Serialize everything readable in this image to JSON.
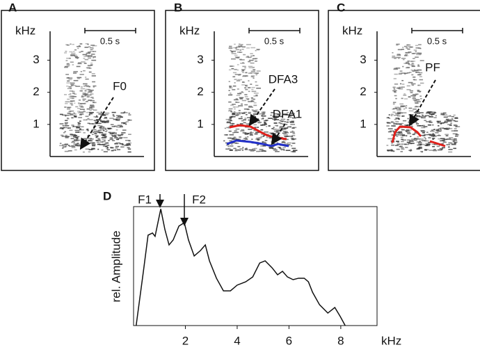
{
  "chart_data": [
    {
      "type": "spectrogram",
      "panel": "A",
      "ylabel": "kHz",
      "ylim": [
        0,
        3.9
      ],
      "yticks": [
        1,
        2,
        3
      ],
      "scale_bar": "0.5 s",
      "annotations": [
        "F0"
      ]
    },
    {
      "type": "spectrogram",
      "panel": "B",
      "ylabel": "kHz",
      "ylim": [
        0,
        3.9
      ],
      "yticks": [
        1,
        2,
        3
      ],
      "scale_bar": "0.5 s",
      "annotations": [
        "DFA3",
        "DFA1"
      ]
    },
    {
      "type": "spectrogram",
      "panel": "C",
      "ylabel": "kHz",
      "ylim": [
        0,
        3.9
      ],
      "yticks": [
        1,
        2,
        3
      ],
      "scale_bar": "0.5 s",
      "annotations": [
        "PF"
      ]
    },
    {
      "type": "line",
      "panel": "D",
      "xlabel": "kHz",
      "ylabel": "rel. Amplitude",
      "xlim": [
        0,
        9.4
      ],
      "xticks": [
        2,
        4,
        6,
        8
      ],
      "ylim": [
        0,
        100
      ],
      "color": "#111111",
      "x": [
        0.1,
        0.38,
        0.56,
        0.73,
        0.83,
        1.05,
        1.21,
        1.37,
        1.53,
        1.75,
        1.96,
        2.12,
        2.34,
        2.58,
        2.77,
        2.93,
        3.2,
        3.47,
        3.74,
        4.0,
        4.33,
        4.6,
        4.87,
        5.08,
        5.35,
        5.56,
        5.75,
        5.94,
        6.16,
        6.37,
        6.59,
        6.75,
        6.91,
        7.18,
        7.5,
        7.77,
        7.98,
        8.17
      ],
      "values": [
        0,
        45.6,
        76,
        77.8,
        75,
        98,
        80.7,
        67.8,
        72,
        83.6,
        86.5,
        72,
        58.5,
        63,
        67.8,
        54.4,
        39.8,
        29.2,
        29.2,
        34,
        36.8,
        40.9,
        52.6,
        54.4,
        48.5,
        42.7,
        45.6,
        40.9,
        38.6,
        39.8,
        39.8,
        36.8,
        28,
        17.5,
        10.5,
        15.2,
        7.6,
        0
      ],
      "annotations": [
        "F1",
        "F2"
      ]
    }
  ]
}
